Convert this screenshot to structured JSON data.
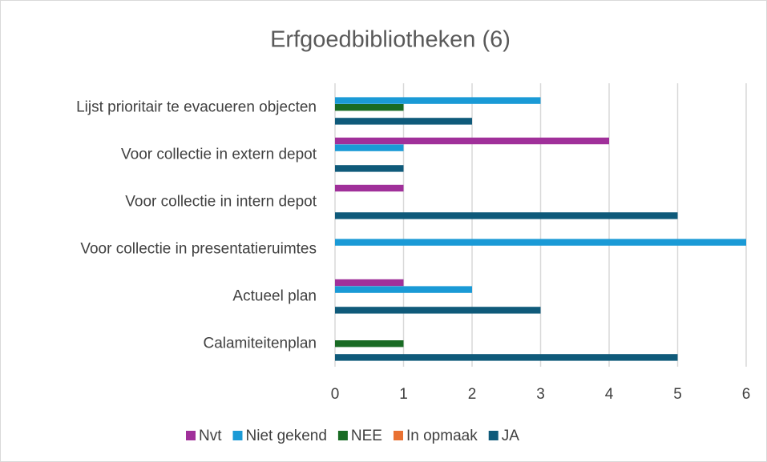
{
  "chart_data": {
    "type": "hbar",
    "title": "Erfgoedbibliotheken (6)",
    "categories": [
      "Lijst prioritair te evacueren objecten",
      "Voor collectie in extern depot",
      "Voor collectie in intern depot",
      "Voor collectie in presentatieruimtes",
      "Actueel plan",
      "Calamiteitenplan"
    ],
    "series": [
      {
        "name": "Nvt",
        "color": "#a0309a",
        "values": [
          0,
          4,
          1,
          0,
          1,
          0
        ]
      },
      {
        "name": "Niet gekend",
        "color": "#1a9ad6",
        "values": [
          3,
          1,
          0,
          6,
          2,
          0
        ]
      },
      {
        "name": "NEE",
        "color": "#196b24",
        "values": [
          1,
          0,
          0,
          0,
          0,
          1
        ]
      },
      {
        "name": "In opmaak",
        "color": "#e97132",
        "values": [
          0,
          0,
          0,
          0,
          0,
          0
        ]
      },
      {
        "name": "JA",
        "color": "#0f5a7a",
        "values": [
          2,
          1,
          5,
          0,
          3,
          5
        ]
      }
    ],
    "xlim": [
      0,
      6
    ],
    "xticks": [
      0,
      1,
      2,
      3,
      4,
      5,
      6
    ],
    "grid": true,
    "legend": "bottom"
  }
}
